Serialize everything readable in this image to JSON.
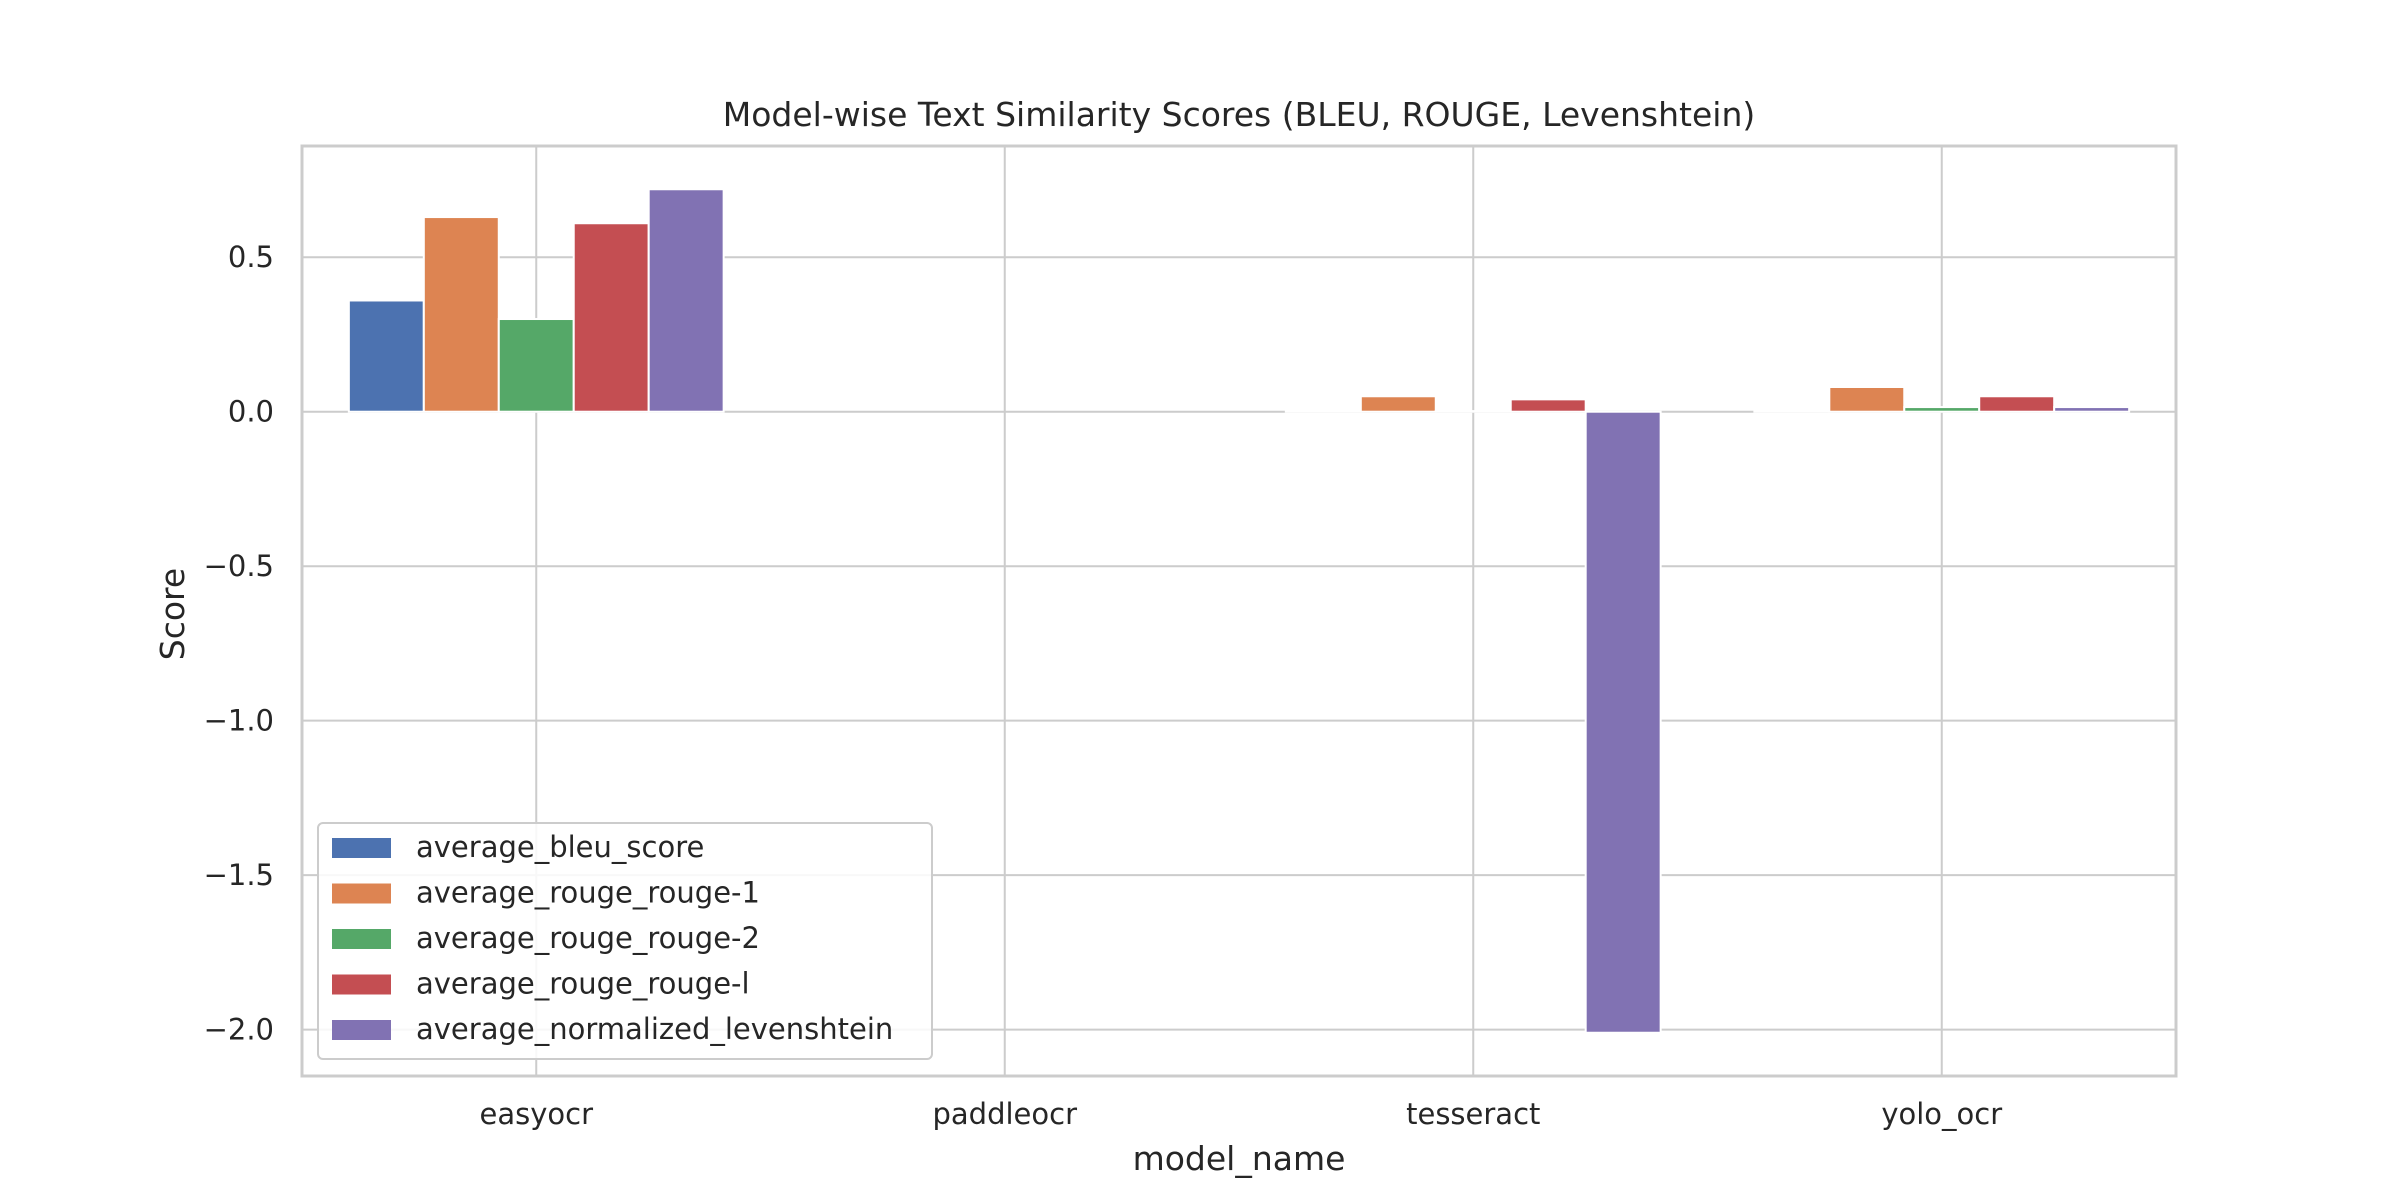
{
  "chart_data": {
    "type": "bar",
    "title": "Model-wise Text Similarity Scores (BLEU, ROUGE, Levenshtein)",
    "xlabel": "model_name",
    "ylabel": "Score",
    "categories": [
      "easyocr",
      "paddleocr",
      "tesseract",
      "yolo_ocr"
    ],
    "ylim": [
      -2.15,
      0.86
    ],
    "yticks": [
      0.5,
      0.0,
      -0.5,
      -1.0,
      -1.5,
      -2.0
    ],
    "ytick_labels": [
      "0.5",
      "0.0",
      "−0.5",
      "−1.0",
      "−1.5",
      "−2.0"
    ],
    "grid": true,
    "legend_position": "lower-left",
    "series": [
      {
        "name": "average_bleu_score",
        "color": "#4c72b0",
        "values": [
          0.36,
          0.0,
          0.003,
          0.002
        ]
      },
      {
        "name": "average_rouge_rouge-1",
        "color": "#dd8452",
        "values": [
          0.63,
          0.0,
          0.05,
          0.08
        ]
      },
      {
        "name": "average_rouge_rouge-2",
        "color": "#55a868",
        "values": [
          0.3,
          0.0,
          0.002,
          0.015
        ]
      },
      {
        "name": "average_rouge_rouge-l",
        "color": "#c44e52",
        "values": [
          0.61,
          0.0,
          0.04,
          0.05
        ]
      },
      {
        "name": "average_normalized_levenshtein",
        "color": "#8172b3",
        "values": [
          0.72,
          0.0,
          -2.01,
          0.015
        ]
      }
    ]
  }
}
